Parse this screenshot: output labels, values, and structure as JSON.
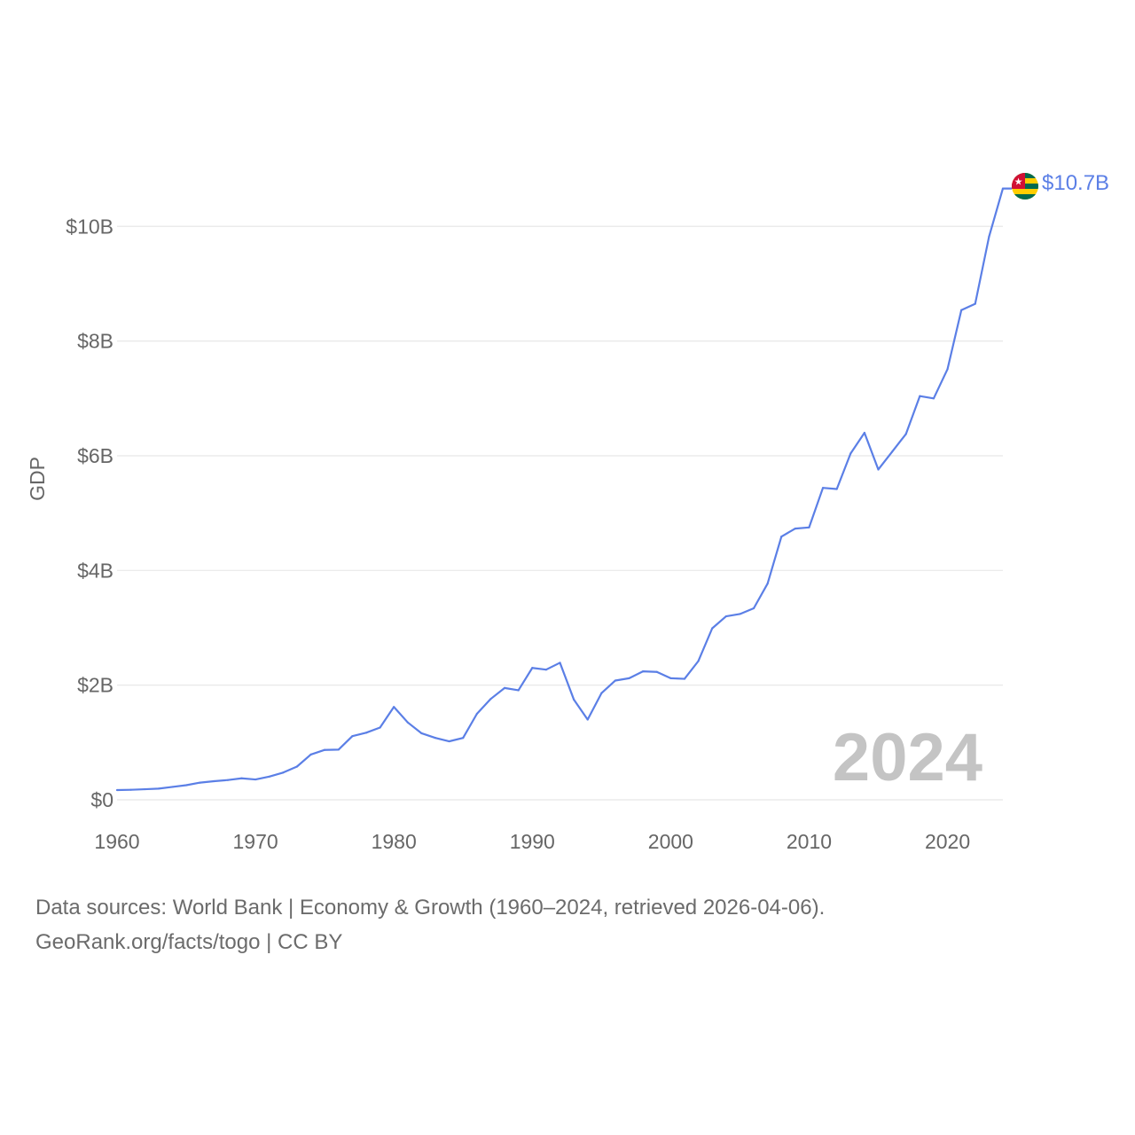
{
  "chart_data": {
    "type": "line",
    "title": "",
    "xlabel": "",
    "ylabel": "GDP",
    "xlim": [
      1960,
      2024
    ],
    "ylim": [
      0,
      10700000000
    ],
    "x_ticks": [
      1960,
      1970,
      1980,
      1990,
      2000,
      2010,
      2020
    ],
    "x_tick_labels": [
      "1960",
      "1970",
      "1980",
      "1990",
      "2000",
      "2010",
      "2020"
    ],
    "y_ticks": [
      0,
      2000000000,
      4000000000,
      6000000000,
      8000000000,
      10000000000
    ],
    "y_tick_labels": [
      "$0",
      "$2B",
      "$4B",
      "$6B",
      "$8B",
      "$10B"
    ],
    "grid": true,
    "year_watermark": "2024",
    "series": [
      {
        "name": "Togo",
        "color": "#5b7fe6",
        "end_label": "$10.7B",
        "x": [
          1960,
          1961,
          1962,
          1963,
          1964,
          1965,
          1966,
          1967,
          1968,
          1969,
          1970,
          1971,
          1972,
          1973,
          1974,
          1975,
          1976,
          1977,
          1978,
          1979,
          1980,
          1981,
          1982,
          1983,
          1984,
          1985,
          1986,
          1987,
          1988,
          1989,
          1990,
          1991,
          1992,
          1993,
          1994,
          1995,
          1996,
          1997,
          1998,
          1999,
          2000,
          2001,
          2002,
          2003,
          2004,
          2005,
          2006,
          2007,
          2008,
          2009,
          2010,
          2011,
          2012,
          2013,
          2014,
          2015,
          2016,
          2017,
          2018,
          2019,
          2020,
          2021,
          2022,
          2023,
          2024
        ],
        "values": [
          170000000,
          175000000,
          185000000,
          195000000,
          225000000,
          255000000,
          300000000,
          325000000,
          345000000,
          375000000,
          355000000,
          405000000,
          475000000,
          580000000,
          790000000,
          870000000,
          875000000,
          1110000000,
          1170000000,
          1260000000,
          1620000000,
          1350000000,
          1160000000,
          1080000000,
          1020000000,
          1080000000,
          1500000000,
          1760000000,
          1950000000,
          1910000000,
          2300000000,
          2270000000,
          2390000000,
          1750000000,
          1400000000,
          1860000000,
          2080000000,
          2120000000,
          2240000000,
          2230000000,
          2120000000,
          2110000000,
          2420000000,
          2990000000,
          3200000000,
          3240000000,
          3340000000,
          3770000000,
          4590000000,
          4730000000,
          4750000000,
          5440000000,
          5420000000,
          6040000000,
          6400000000,
          5760000000,
          6070000000,
          6380000000,
          7040000000,
          7000000000,
          7510000000,
          8540000000,
          8650000000,
          9820000000,
          10660000000
        ]
      }
    ]
  },
  "colors": {
    "line": "#5b7fe6",
    "grid": "#e8e8e8",
    "text": "#666666",
    "flag_red": "#d21034",
    "flag_yellow": "#ffce00",
    "flag_green": "#006a4e"
  },
  "footer": {
    "line1": "Data sources: World Bank | Economy & Growth (1960–2024, retrieved 2026-04-06).",
    "line2": "GeoRank.org/facts/togo | CC BY"
  }
}
